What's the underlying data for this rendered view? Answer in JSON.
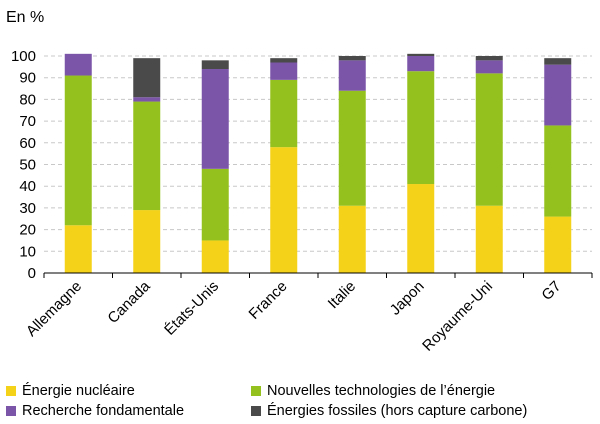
{
  "chart_data": {
    "type": "bar",
    "stacked": true,
    "unit_label": "En %",
    "categories": [
      "Allemagne",
      "Canada",
      "États-Unis",
      "France",
      "Italie",
      "Japon",
      "Royaume-Uni",
      "G7"
    ],
    "ylim": [
      0,
      100
    ],
    "yticks": [
      0,
      10,
      20,
      30,
      40,
      50,
      60,
      70,
      80,
      90,
      100
    ],
    "grid": true,
    "legend_position": "bottom",
    "series": [
      {
        "name": "Énergie nucléaire",
        "color": "#f5d21a",
        "values": [
          22,
          29,
          15,
          58,
          31,
          41,
          31,
          26
        ]
      },
      {
        "name": "Nouvelles technologies de l’énergie",
        "color": "#95c11f",
        "values": [
          69,
          50,
          33,
          31,
          53,
          52,
          61,
          42
        ]
      },
      {
        "name": "Recherche fondamentale",
        "color": "#7b55a8",
        "values": [
          10,
          2,
          46,
          8,
          14,
          7,
          6,
          28
        ]
      },
      {
        "name": "Énergies fossiles (hors capture carbone)",
        "color": "#4a4a4a",
        "values": [
          0,
          18,
          4,
          2,
          2,
          1,
          2,
          3
        ]
      }
    ]
  }
}
